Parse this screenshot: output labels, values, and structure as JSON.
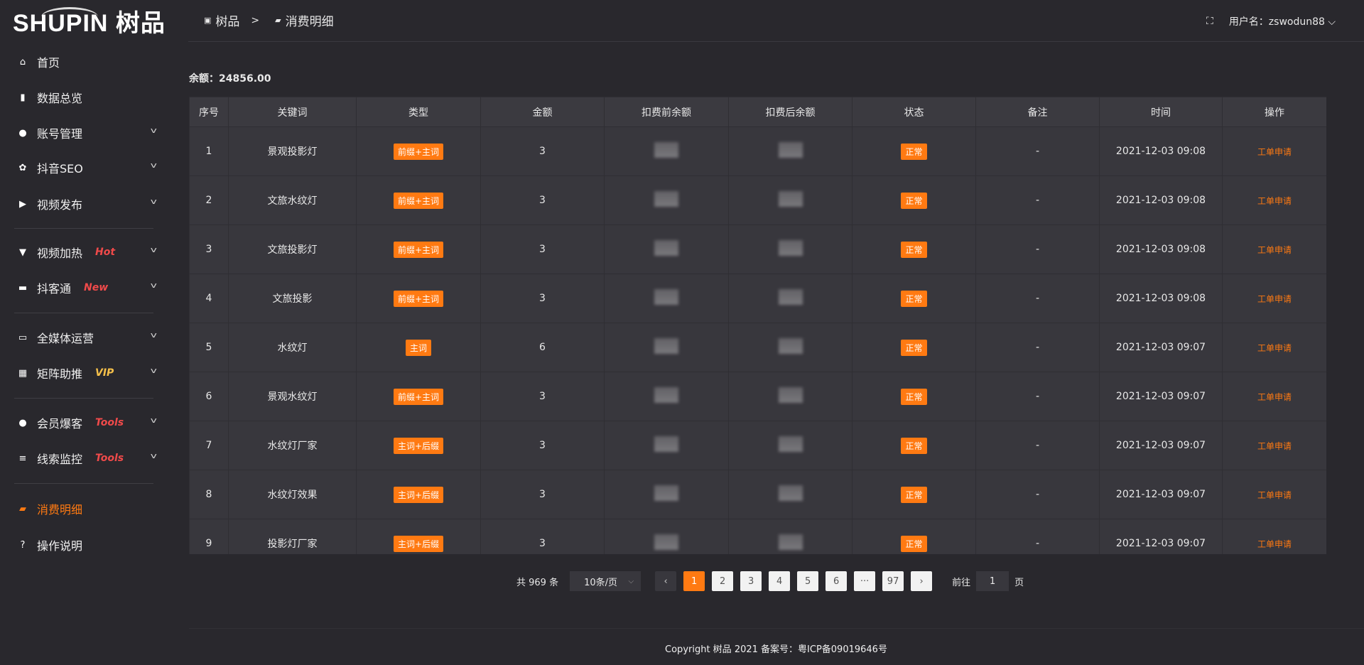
{
  "logo": {
    "text": "SHUPIN 树品"
  },
  "sidebar": {
    "items": [
      {
        "label": "首页",
        "icon": "home-icon",
        "tag": "",
        "chev": false
      },
      {
        "label": "数据总览",
        "icon": "bar-chart-icon",
        "tag": "",
        "chev": false
      },
      {
        "label": "账号管理",
        "icon": "user-icon",
        "tag": "",
        "chev": true
      },
      {
        "label": "抖音SEO",
        "icon": "gear-icon",
        "tag": "",
        "chev": true
      },
      {
        "label": "视频发布",
        "icon": "video-camera-icon",
        "tag": "",
        "chev": true
      },
      {
        "label": "视频加热",
        "icon": "boost-icon",
        "tag": "Hot",
        "tagColor": "#f04a4a",
        "chev": true
      },
      {
        "label": "抖客通",
        "icon": "chat-icon",
        "tag": "New",
        "tagColor": "#f04a4a",
        "chev": true
      },
      {
        "label": "全媒体运营",
        "icon": "monitor-icon",
        "tag": "",
        "chev": true
      },
      {
        "label": "矩阵助推",
        "icon": "grid-icon",
        "tag": "VIP",
        "tagColor": "#f5c04a",
        "chev": true
      },
      {
        "label": "会员爆客",
        "icon": "user-icon",
        "tag": "Tools",
        "tagColor": "#f04a4a",
        "chev": true
      },
      {
        "label": "线索监控",
        "icon": "sliders-icon",
        "tag": "Tools",
        "tagColor": "#f04a4a",
        "chev": true
      },
      {
        "label": "消费明细",
        "icon": "wallet-icon",
        "tag": "",
        "chev": false,
        "active": true
      },
      {
        "label": "操作说明",
        "icon": "help-icon",
        "tag": "",
        "chev": false
      }
    ]
  },
  "header": {
    "breadcrumb": [
      "树品",
      "消费明细"
    ],
    "separator": ">",
    "user_label": "用户名：zswodun88"
  },
  "balance": {
    "label": "余额：",
    "value": "24856.00"
  },
  "table": {
    "columns": [
      "序号",
      "关键词",
      "类型",
      "金额",
      "扣费前余额",
      "扣费后余额",
      "状态",
      "备注",
      "时间",
      "操作"
    ],
    "rows": [
      {
        "no": "1",
        "keyword": "景观投影灯",
        "type": "前缀+主词",
        "amount": "3",
        "status": "正常",
        "note": "-",
        "time": "2021-12-03 09:08",
        "action": "工单申请"
      },
      {
        "no": "2",
        "keyword": "文旅水纹灯",
        "type": "前缀+主词",
        "amount": "3",
        "status": "正常",
        "note": "-",
        "time": "2021-12-03 09:08",
        "action": "工单申请"
      },
      {
        "no": "3",
        "keyword": "文旅投影灯",
        "type": "前缀+主词",
        "amount": "3",
        "status": "正常",
        "note": "-",
        "time": "2021-12-03 09:08",
        "action": "工单申请"
      },
      {
        "no": "4",
        "keyword": "文旅投影",
        "type": "前缀+主词",
        "amount": "3",
        "status": "正常",
        "note": "-",
        "time": "2021-12-03 09:08",
        "action": "工单申请"
      },
      {
        "no": "5",
        "keyword": "水纹灯",
        "type": "主词",
        "amount": "6",
        "status": "正常",
        "note": "-",
        "time": "2021-12-03 09:07",
        "action": "工单申请"
      },
      {
        "no": "6",
        "keyword": "景观水纹灯",
        "type": "前缀+主词",
        "amount": "3",
        "status": "正常",
        "note": "-",
        "time": "2021-12-03 09:07",
        "action": "工单申请"
      },
      {
        "no": "7",
        "keyword": "水纹灯厂家",
        "type": "主词+后缀",
        "amount": "3",
        "status": "正常",
        "note": "-",
        "time": "2021-12-03 09:07",
        "action": "工单申请"
      },
      {
        "no": "8",
        "keyword": "水纹灯效果",
        "type": "主词+后缀",
        "amount": "3",
        "status": "正常",
        "note": "-",
        "time": "2021-12-03 09:07",
        "action": "工单申请"
      },
      {
        "no": "9",
        "keyword": "投影灯厂家",
        "type": "主词+后缀",
        "amount": "3",
        "status": "正常",
        "note": "-",
        "time": "2021-12-03 09:07",
        "action": "工单申请"
      }
    ]
  },
  "pagination": {
    "total": "共 969 条",
    "page_size": "10条/页",
    "pages": [
      "1",
      "2",
      "3",
      "4",
      "5",
      "6",
      "···",
      "97"
    ],
    "current": "1",
    "goto_label": "前往",
    "goto_value": "1",
    "page_suffix": "页"
  },
  "footer": {
    "text": "Copyright 树品 2021 备案号：粤ICP备09019646号"
  },
  "colors": {
    "accent": "#ff7a12",
    "background": "#29282d",
    "table": "#38373d"
  }
}
